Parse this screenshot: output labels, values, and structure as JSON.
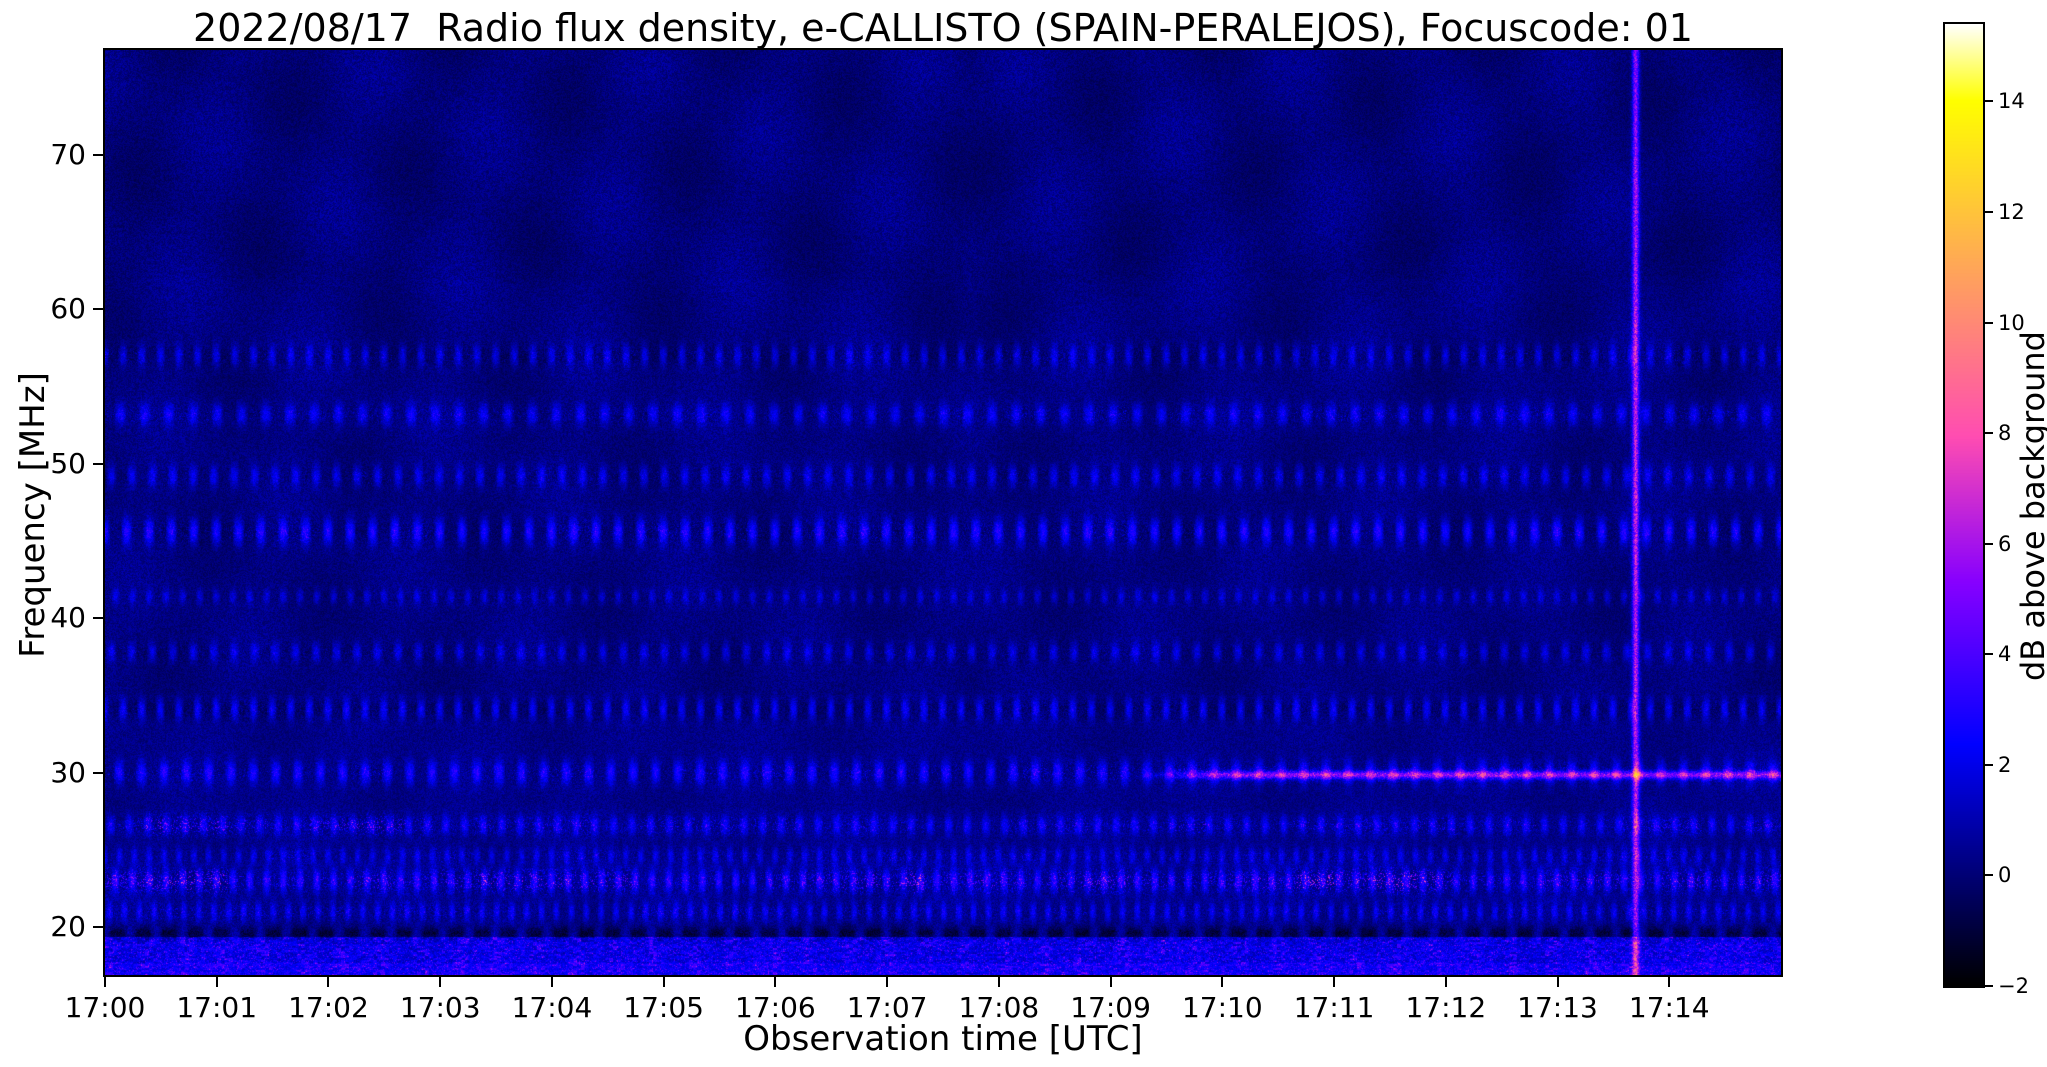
{
  "chart_data": {
    "type": "heatmap",
    "title": "2022/08/17  Radio flux density, e-CALLISTO (SPAIN-PERALEJOS), Focuscode: 01",
    "xlabel": "Observation time [UTC]",
    "ylabel": "Frequency [MHz]",
    "x_ticks": [
      "17:00",
      "17:01",
      "17:02",
      "17:03",
      "17:04",
      "17:05",
      "17:06",
      "17:07",
      "17:08",
      "17:09",
      "17:10",
      "17:11",
      "17:12",
      "17:13",
      "17:14"
    ],
    "x_span_minutes": 15,
    "y_ticks": [
      20,
      30,
      40,
      50,
      60,
      70
    ],
    "y_range_mhz": [
      16.9,
      76.8
    ],
    "grid": false,
    "colorbar": {
      "label": "dB above background",
      "tick_labels": [
        "−2",
        "0",
        "2",
        "4",
        "6",
        "8",
        "10",
        "12",
        "14"
      ],
      "range": [
        -2,
        15.4
      ],
      "colormap": "gnuplot2",
      "position": "right"
    },
    "background_level_db": 0.2,
    "fringes": {
      "description": "faint diagonal interference fringe arcs converging near 17:07.75, strongest above 35 MHz",
      "vertex_s": 465,
      "amp_db": 0.45
    },
    "rfi_bands": [
      {
        "freq_mhz": 57.0,
        "sigma_mhz": 0.5,
        "amp_db": 1.7,
        "dark_db": 0.9,
        "period_s": 10,
        "speckle_db": 1.8
      },
      {
        "freq_mhz": 53.2,
        "sigma_mhz": 0.5,
        "amp_db": 2.1,
        "dark_db": 0.7,
        "period_s": 13,
        "speckle_db": 2.2
      },
      {
        "freq_mhz": 49.2,
        "sigma_mhz": 0.5,
        "amp_db": 1.9,
        "dark_db": 0.8,
        "period_s": 11,
        "speckle_db": 1.8
      },
      {
        "freq_mhz": 45.6,
        "sigma_mhz": 0.6,
        "amp_db": 2.7,
        "dark_db": 1.1,
        "period_s": 12,
        "speckle_db": 2.2
      },
      {
        "freq_mhz": 41.4,
        "sigma_mhz": 0.35,
        "amp_db": 1.5,
        "dark_db": 0.6,
        "period_s": 9,
        "speckle_db": 1.2
      },
      {
        "freq_mhz": 37.8,
        "sigma_mhz": 0.45,
        "amp_db": 1.7,
        "dark_db": 0.8,
        "period_s": 11,
        "speckle_db": 1.6
      },
      {
        "freq_mhz": 34.1,
        "sigma_mhz": 0.5,
        "amp_db": 1.9,
        "dark_db": 1.2,
        "period_s": 10,
        "speckle_db": 1.6
      },
      {
        "freq_mhz": 30.0,
        "sigma_mhz": 0.55,
        "amp_db": 2.5,
        "dark_db": 0.9,
        "period_s": 12,
        "speckle_db": 2.6
      },
      {
        "freq_mhz": 26.6,
        "sigma_mhz": 0.45,
        "amp_db": 2.1,
        "dark_db": 0.6,
        "period_s": 10,
        "speckle_db": 3.6,
        "bright_times_s": [
          [
            15,
            160
          ]
        ]
      },
      {
        "freq_mhz": 24.6,
        "sigma_mhz": 0.4,
        "amp_db": 1.7,
        "dark_db": 0.5,
        "period_s": 8,
        "speckle_db": 2.2
      },
      {
        "freq_mhz": 23.0,
        "sigma_mhz": 0.55,
        "amp_db": 2.7,
        "dark_db": 0.7,
        "period_s": 9,
        "speckle_db": 5.5,
        "bright_times_s": [
          [
            0,
            75
          ],
          [
            430,
            495
          ],
          [
            590,
            720
          ]
        ]
      },
      {
        "freq_mhz": 21.0,
        "sigma_mhz": 0.45,
        "amp_db": 1.9,
        "dark_db": 0.6,
        "period_s": 8,
        "speckle_db": 2.2
      },
      {
        "freq_mhz": 19.6,
        "sigma_mhz": 0.3,
        "amp_db": 0.4,
        "dark_db": 1.6,
        "period_s": 14,
        "speckle_db": 0.8
      }
    ],
    "features": [
      {
        "type": "vertical-line",
        "time_label": "17:13.7",
        "t_s": 822,
        "amp_db": 5.0
      },
      {
        "type": "drifting-streak",
        "freq_mhz": 29.85,
        "start_s": 550,
        "end_s": 900,
        "amp_db": 6.0
      },
      {
        "type": "broadband-noise",
        "max_freq_mhz": 19.35,
        "amp_db": 2.6
      }
    ],
    "colors": {
      "page_background": "#ffffff",
      "axes_and_text": "#000000",
      "plot_background_approx": "#05055e"
    }
  }
}
